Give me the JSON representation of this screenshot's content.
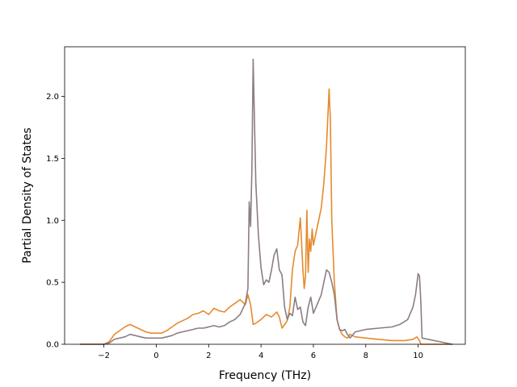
{
  "chart_data": {
    "type": "line",
    "title": "",
    "xlabel": "Frequency (THz)",
    "ylabel": "Partial Density of States",
    "xlim": [
      -3.5,
      11.8
    ],
    "ylim": [
      0,
      2.4
    ],
    "xticks": [
      -2,
      0,
      2,
      4,
      6,
      8,
      10
    ],
    "xtick_labels": [
      "−2",
      "0",
      "2",
      "4",
      "6",
      "8",
      "10"
    ],
    "yticks": [
      0,
      0.5,
      1.0,
      1.5,
      2.0
    ],
    "ytick_labels": [
      "0.0",
      "0.5",
      "1.0",
      "1.5",
      "2.0"
    ],
    "grid": false,
    "series": [
      {
        "color": "#e68a2e",
        "x": [
          -2.9,
          -2.0,
          -1.8,
          -1.6,
          -1.4,
          -1.2,
          -1.0,
          -0.8,
          -0.6,
          -0.4,
          -0.2,
          0.0,
          0.2,
          0.4,
          0.6,
          0.8,
          1.0,
          1.2,
          1.4,
          1.6,
          1.8,
          2.0,
          2.2,
          2.4,
          2.6,
          2.8,
          3.0,
          3.2,
          3.4,
          3.5,
          3.6,
          3.7,
          3.8,
          4.0,
          4.2,
          4.4,
          4.6,
          4.7,
          4.8,
          5.0,
          5.1,
          5.2,
          5.3,
          5.4,
          5.5,
          5.6,
          5.65,
          5.7,
          5.75,
          5.8,
          5.85,
          5.9,
          5.95,
          6.0,
          6.1,
          6.2,
          6.3,
          6.4,
          6.5,
          6.6,
          6.65,
          6.7,
          6.8,
          6.9,
          7.0,
          7.1,
          7.2,
          7.3,
          7.4,
          7.6,
          8.0,
          8.5,
          9.0,
          9.5,
          9.8,
          9.95,
          10.05,
          10.1,
          11.3
        ],
        "y": [
          0.0,
          0.0,
          0.02,
          0.08,
          0.11,
          0.14,
          0.16,
          0.14,
          0.12,
          0.1,
          0.09,
          0.09,
          0.09,
          0.11,
          0.14,
          0.17,
          0.19,
          0.21,
          0.24,
          0.25,
          0.27,
          0.24,
          0.29,
          0.27,
          0.26,
          0.3,
          0.33,
          0.36,
          0.32,
          0.4,
          0.32,
          0.16,
          0.17,
          0.2,
          0.24,
          0.22,
          0.26,
          0.22,
          0.13,
          0.19,
          0.3,
          0.6,
          0.75,
          0.8,
          1.02,
          0.6,
          0.45,
          0.55,
          1.08,
          0.58,
          0.85,
          0.75,
          0.93,
          0.8,
          0.9,
          1.0,
          1.1,
          1.3,
          1.6,
          2.06,
          1.8,
          1.0,
          0.5,
          0.2,
          0.12,
          0.08,
          0.06,
          0.05,
          0.08,
          0.06,
          0.05,
          0.04,
          0.03,
          0.03,
          0.04,
          0.06,
          0.03,
          0.0,
          0.0
        ]
      },
      {
        "color": "#8c7d84",
        "x": [
          -2.9,
          -2.0,
          -1.8,
          -1.6,
          -1.4,
          -1.2,
          -1.0,
          -0.8,
          -0.6,
          -0.4,
          -0.2,
          0.0,
          0.2,
          0.4,
          0.6,
          0.8,
          1.0,
          1.2,
          1.4,
          1.6,
          1.8,
          2.0,
          2.2,
          2.4,
          2.6,
          2.8,
          3.0,
          3.2,
          3.4,
          3.5,
          3.55,
          3.6,
          3.65,
          3.7,
          3.75,
          3.8,
          3.9,
          4.0,
          4.1,
          4.2,
          4.3,
          4.4,
          4.5,
          4.6,
          4.7,
          4.8,
          4.9,
          5.0,
          5.1,
          5.2,
          5.3,
          5.4,
          5.5,
          5.6,
          5.7,
          5.8,
          5.9,
          6.0,
          6.1,
          6.2,
          6.3,
          6.4,
          6.5,
          6.6,
          6.7,
          6.8,
          6.9,
          7.0,
          7.1,
          7.2,
          7.3,
          7.4,
          7.6,
          8.0,
          8.5,
          9.0,
          9.3,
          9.6,
          9.8,
          9.9,
          10.0,
          10.05,
          10.1,
          10.15,
          11.3
        ],
        "y": [
          0.0,
          0.0,
          0.01,
          0.04,
          0.05,
          0.06,
          0.08,
          0.07,
          0.06,
          0.05,
          0.05,
          0.05,
          0.05,
          0.06,
          0.07,
          0.09,
          0.1,
          0.11,
          0.12,
          0.13,
          0.13,
          0.14,
          0.15,
          0.14,
          0.15,
          0.18,
          0.2,
          0.24,
          0.33,
          0.45,
          1.15,
          0.95,
          1.4,
          2.3,
          1.8,
          1.3,
          0.88,
          0.62,
          0.48,
          0.52,
          0.5,
          0.6,
          0.72,
          0.77,
          0.6,
          0.56,
          0.3,
          0.2,
          0.25,
          0.23,
          0.38,
          0.28,
          0.3,
          0.18,
          0.15,
          0.3,
          0.38,
          0.25,
          0.3,
          0.35,
          0.4,
          0.5,
          0.6,
          0.58,
          0.5,
          0.4,
          0.2,
          0.12,
          0.11,
          0.12,
          0.08,
          0.05,
          0.1,
          0.12,
          0.13,
          0.14,
          0.16,
          0.2,
          0.3,
          0.4,
          0.57,
          0.55,
          0.35,
          0.05,
          0.0
        ]
      }
    ]
  }
}
